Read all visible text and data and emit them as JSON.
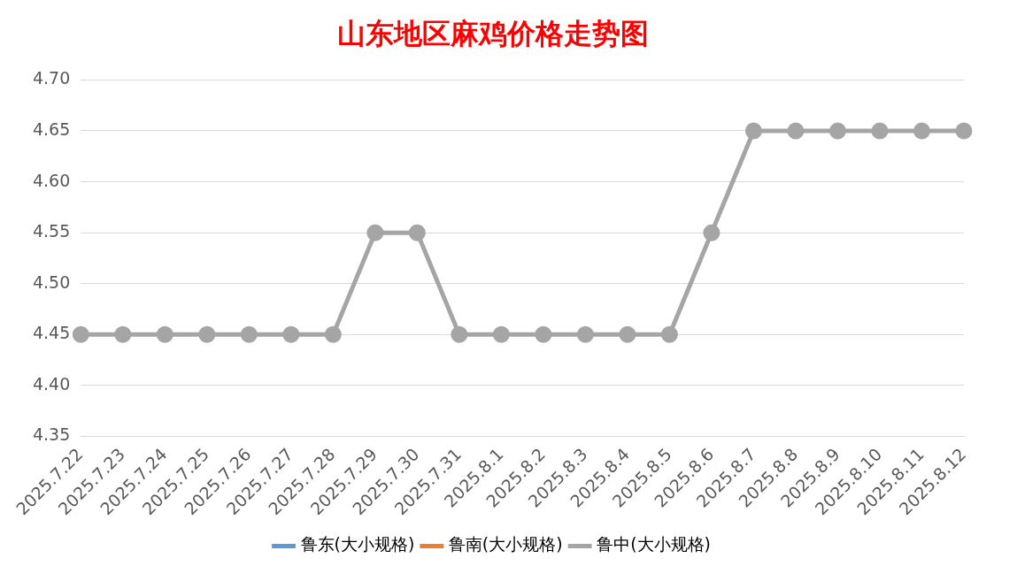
{
  "chart_data": {
    "type": "line",
    "title": "山东地区麻鸡价格走势图",
    "categories": [
      "2025.7.22",
      "2025.7.23",
      "2025.7.24",
      "2025.7.25",
      "2025.7.26",
      "2025.7.27",
      "2025.7.28",
      "2025.7.29",
      "2025.7.30",
      "2025.7.31",
      "2025.8.1",
      "2025.8.2",
      "2025.8.3",
      "2025.8.4",
      "2025.8.5",
      "2025.8.6",
      "2025.8.7",
      "2025.8.8",
      "2025.8.9",
      "2025.8.10",
      "2025.8.11",
      "2025.8.12"
    ],
    "series": [
      {
        "name": "鲁东(大小规格)",
        "color": "#5b9bd5",
        "values": [
          null,
          null,
          null,
          null,
          null,
          null,
          null,
          null,
          null,
          null,
          null,
          null,
          null,
          null,
          null,
          null,
          null,
          null,
          null,
          null,
          null,
          null
        ]
      },
      {
        "name": "鲁南(大小规格)",
        "color": "#ed7d31",
        "values": [
          null,
          null,
          null,
          null,
          null,
          null,
          null,
          null,
          null,
          null,
          null,
          null,
          null,
          null,
          null,
          null,
          null,
          null,
          null,
          null,
          null,
          null
        ]
      },
      {
        "name": "鲁中(大小规格)",
        "color": "#a5a5a5",
        "values": [
          4.45,
          4.45,
          4.45,
          4.45,
          4.45,
          4.45,
          4.45,
          4.55,
          4.55,
          4.45,
          4.45,
          4.45,
          4.45,
          4.45,
          4.45,
          4.55,
          4.65,
          4.65,
          4.65,
          4.65,
          4.65,
          4.65
        ]
      }
    ],
    "ylim": [
      4.35,
      4.7
    ],
    "yticks": [
      4.35,
      {
        "value": 4.4,
        "label": "4.40"
      },
      4.45,
      {
        "value": 4.5,
        "label": "4.50"
      },
      4.55,
      {
        "value": 4.6,
        "label": "4.60"
      },
      4.65,
      {
        "value": 4.7,
        "label": "4.70"
      }
    ],
    "grid": "y",
    "legend": "bottom",
    "marker": "circle",
    "line_style": "solid"
  }
}
